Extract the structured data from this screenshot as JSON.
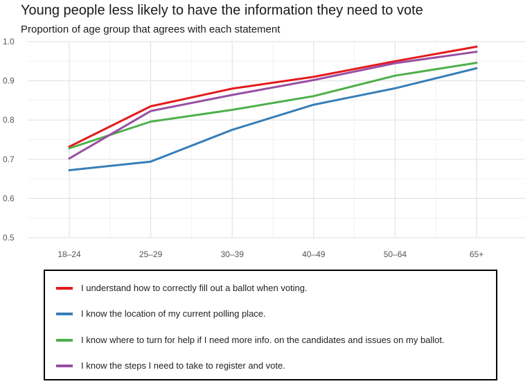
{
  "title": "Young people less likely to have the information they need to vote",
  "subtitle": "Proportion of age group that agrees with each statement",
  "chart_data": {
    "type": "line",
    "categories": [
      "18–24",
      "25–29",
      "30–39",
      "40–49",
      "50–64",
      "65+"
    ],
    "ylim": [
      0.5,
      1.0
    ],
    "yticks": [
      "0.5",
      "0.6",
      "0.7",
      "0.8",
      "0.9",
      "1.0"
    ],
    "grid": true,
    "legend_position": "bottom",
    "series": [
      {
        "name": "I understand how to correctly fill out a ballot when voting.",
        "color": "#e41a1c",
        "values": [
          0.732,
          0.835,
          0.88,
          0.91,
          0.95,
          0.987
        ]
      },
      {
        "name": "I know the location of my current polling place.",
        "color": "#377eb8",
        "values": [
          0.672,
          0.694,
          0.775,
          0.839,
          0.881,
          0.932
        ]
      },
      {
        "name": "I know where to turn for help if I need more info. on the candidates and issues on my ballot.",
        "color": "#4daf4a",
        "values": [
          0.728,
          0.796,
          0.826,
          0.861,
          0.913,
          0.946
        ]
      },
      {
        "name": "I know the steps I need to take to register and vote.",
        "color": "#984ea3",
        "values": [
          0.702,
          0.823,
          0.864,
          0.902,
          0.945,
          0.974
        ]
      }
    ]
  }
}
